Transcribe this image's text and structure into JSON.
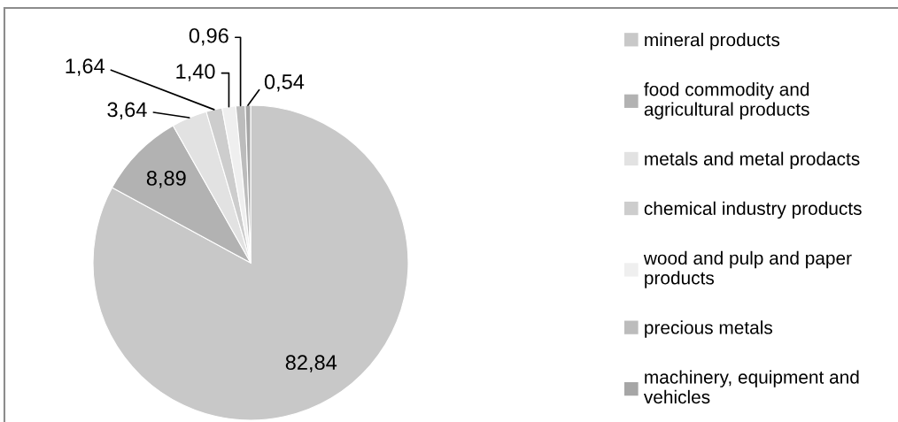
{
  "chart_data": {
    "type": "pie",
    "categories": [
      "mineral products",
      "food commodity and\nagricultural products",
      "metals and metal prodacts",
      "chemical industry products",
      "wood and pulp and paper\nproducts",
      "precious metals",
      "machinery, equipment and\nvehicles"
    ],
    "values": [
      82.84,
      8.89,
      3.64,
      1.64,
      1.4,
      0.96,
      0.54
    ],
    "colors": [
      "#c8c8c8",
      "#b2b2b2",
      "#e2e2e2",
      "#cdcdcd",
      "#efefef",
      "#bcbcbc",
      "#a6a6a6"
    ],
    "value_labels": [
      "82,84",
      "8,89",
      "3,64",
      "1,64",
      "1,40",
      "0,96",
      "0,54"
    ],
    "legend": "right"
  }
}
